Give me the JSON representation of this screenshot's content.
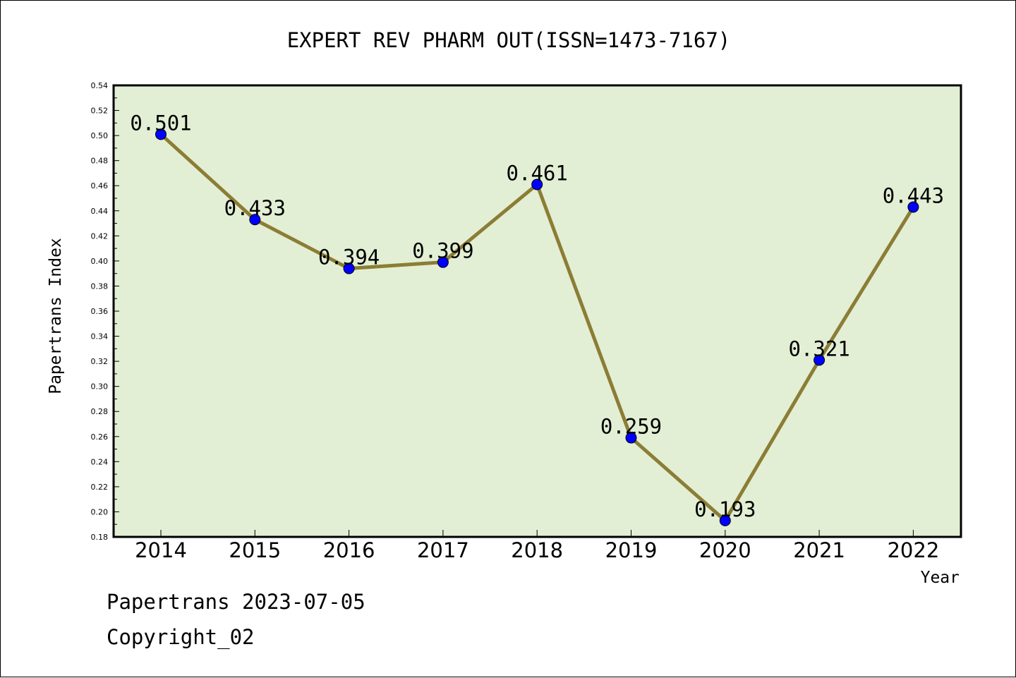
{
  "chart_data": {
    "type": "line",
    "title": "EXPERT REV PHARM OUT(ISSN=1473-7167)",
    "xlabel": "Year",
    "ylabel": "Papertrans Index",
    "categories": [
      "2014",
      "2015",
      "2016",
      "2017",
      "2018",
      "2019",
      "2020",
      "2021",
      "2022"
    ],
    "series": [
      {
        "values": [
          0.501,
          0.433,
          0.394,
          0.399,
          0.461,
          0.259,
          0.193,
          0.321,
          0.443
        ],
        "data_labels": [
          "0.501",
          "0.433",
          "0.394",
          "0.399",
          "0.461",
          "0.259",
          "0.193",
          "0.321",
          "0.443"
        ]
      }
    ],
    "ylim": [
      0.18,
      0.54
    ],
    "y_ticks": [
      "0.18",
      "0.20",
      "0.22",
      "0.24",
      "0.26",
      "0.28",
      "0.30",
      "0.32",
      "0.34",
      "0.36",
      "0.38",
      "0.40",
      "0.42",
      "0.44",
      "0.46",
      "0.48",
      "0.50",
      "0.52",
      "0.54"
    ],
    "grid": false,
    "colors": {
      "plot_background": "#e2efd5",
      "line": "#8c7d35",
      "marker": "#0000ff"
    }
  },
  "footer": {
    "date_line": "Papertrans 2023-07-05",
    "copyright_line": "Copyright_02"
  }
}
